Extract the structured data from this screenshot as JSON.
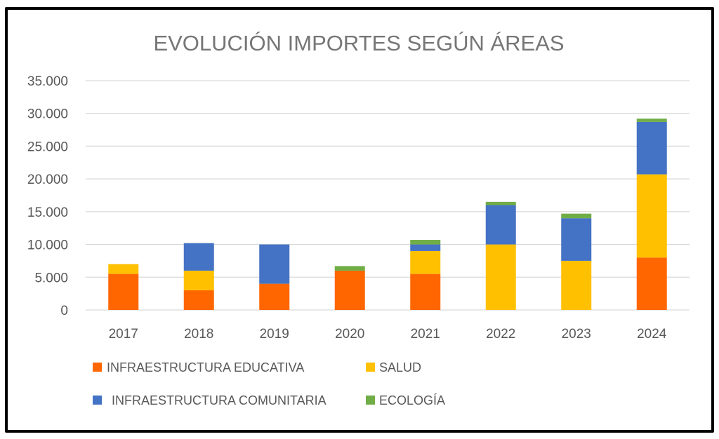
{
  "chart_data": {
    "type": "bar",
    "stacked": true,
    "title": "EVOLUCIÓN IMPORTES SEGÚN ÁREAS",
    "xlabel": "",
    "ylabel": "",
    "categories": [
      "2017",
      "2018",
      "2019",
      "2020",
      "2021",
      "2022",
      "2023",
      "2024"
    ],
    "ylim": [
      0,
      35000
    ],
    "yticks": [
      0,
      5000,
      10000,
      15000,
      20000,
      25000,
      30000,
      35000
    ],
    "ytick_labels": [
      "0",
      "5.000",
      "10.000",
      "15.000",
      "20.000",
      "25.000",
      "30.000",
      "35.000"
    ],
    "grid": true,
    "legend_position": "bottom-left",
    "series": [
      {
        "name": "INFRAESTRUCTURA EDUCATIVA",
        "color": "#FF6600",
        "values": [
          5500,
          3000,
          4000,
          6000,
          5500,
          0,
          0,
          8000
        ]
      },
      {
        "name": "SALUD",
        "color": "#FFC000",
        "values": [
          1500,
          3000,
          0,
          0,
          3500,
          10000,
          7500,
          12700
        ]
      },
      {
        "name": "INFRAESTRUCTURA COMUNITARIA",
        "color": "#4472C4",
        "values": [
          0,
          4200,
          6000,
          0,
          1000,
          6000,
          6500,
          8000
        ]
      },
      {
        "name": "ECOLOGÍA",
        "color": "#70AD47",
        "values": [
          0,
          0,
          0,
          700,
          700,
          500,
          700,
          500
        ]
      }
    ]
  }
}
